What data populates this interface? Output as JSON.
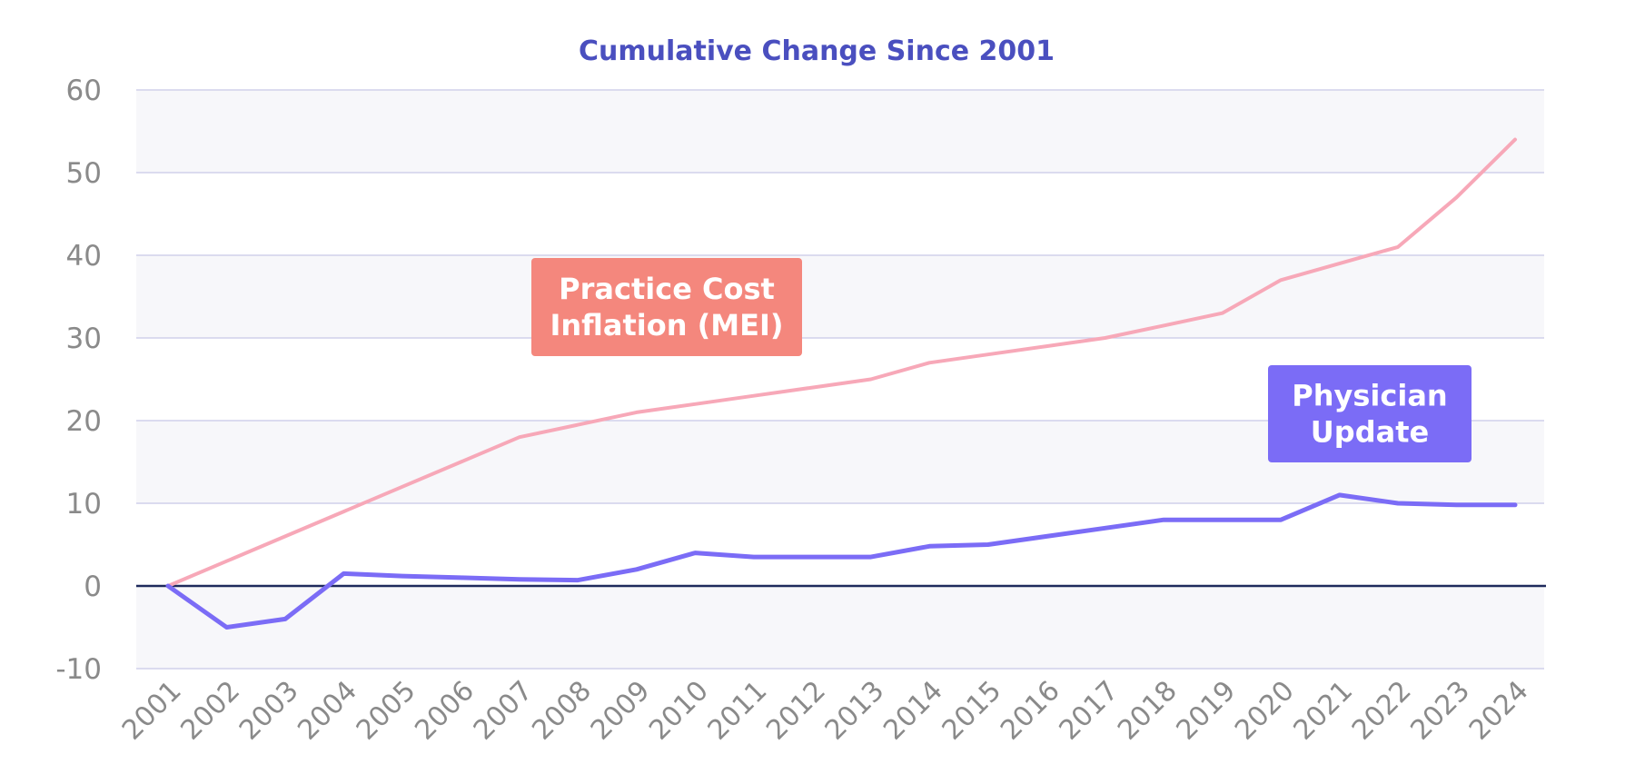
{
  "chart_data": {
    "type": "line",
    "title": "Cumulative Change Since 2001",
    "xlabel": "",
    "ylabel": "",
    "ylim": [
      -10,
      60
    ],
    "yticks": [
      -10,
      0,
      10,
      20,
      30,
      40,
      50,
      60
    ],
    "categories": [
      "2001",
      "2002",
      "2003",
      "2004",
      "2005",
      "2006",
      "2007",
      "2008",
      "2009",
      "2010",
      "2011",
      "2012",
      "2013",
      "2014",
      "2015",
      "2016",
      "2017",
      "2018",
      "2019",
      "2020",
      "2021",
      "2022",
      "2023",
      "2024"
    ],
    "series": [
      {
        "name": "Practice Cost Inflation (MEI)",
        "color": "#f7a8b8",
        "values": [
          0,
          3,
          6,
          9,
          12,
          15,
          18,
          19.5,
          21,
          22,
          23,
          24,
          25,
          27,
          28,
          29,
          30,
          31.5,
          33,
          37,
          39,
          41,
          47,
          54
        ]
      },
      {
        "name": "Physician Update",
        "color": "#7b6cf6",
        "values": [
          0,
          -5,
          -4,
          1.5,
          1.2,
          1.0,
          0.8,
          0.7,
          2,
          4,
          3.5,
          3.5,
          3.5,
          4.8,
          5,
          6,
          7,
          8,
          8,
          8,
          11,
          10,
          9.8,
          9.8
        ]
      }
    ],
    "annotations": [
      {
        "lines": [
          "Practice Cost",
          "Inflation (MEI)"
        ],
        "color": "#f4877d"
      },
      {
        "lines": [
          "Physician",
          "Update"
        ],
        "color": "#7b6cf6"
      }
    ],
    "band_color": "#f7f7fa",
    "grid_color": "#c8c8e6",
    "zero_line_color": "#1f2a5c"
  }
}
